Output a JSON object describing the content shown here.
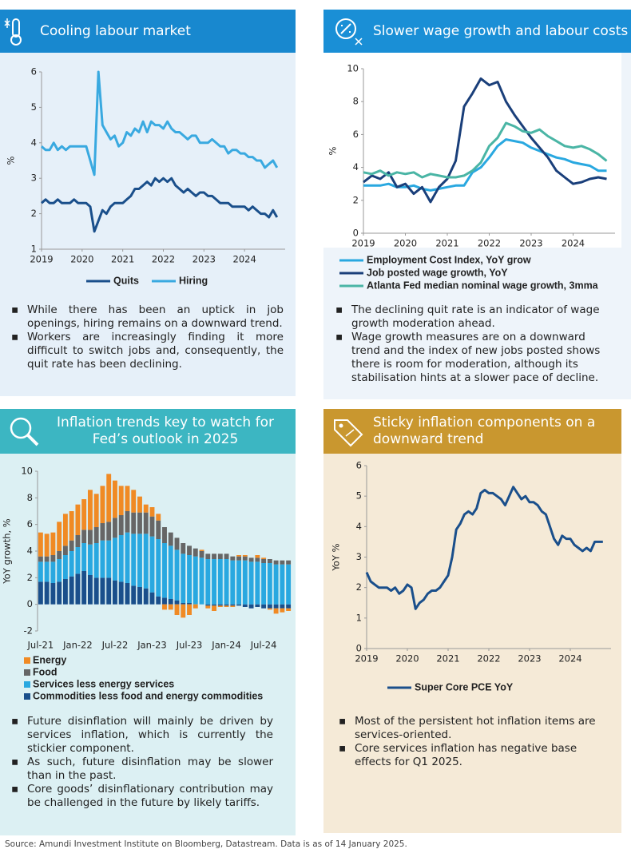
{
  "chart_data": [
    {
      "type": "line",
      "title": "Cooling labour market",
      "ylabel": "%",
      "xlim": [
        2019,
        2025
      ],
      "ylim": [
        1,
        6
      ],
      "xticks": [
        2019,
        2020,
        2021,
        2022,
        2023,
        2024
      ],
      "yticks": [
        1,
        2,
        3,
        4,
        5,
        6
      ],
      "grid": false,
      "legend": "bottom",
      "x": [
        2019.0,
        2019.1,
        2019.2,
        2019.3,
        2019.4,
        2019.5,
        2019.6,
        2019.7,
        2019.8,
        2019.9,
        2020.0,
        2020.1,
        2020.2,
        2020.3,
        2020.4,
        2020.5,
        2020.6,
        2020.7,
        2020.8,
        2020.9,
        2021.0,
        2021.1,
        2021.2,
        2021.3,
        2021.4,
        2021.5,
        2021.6,
        2021.7,
        2021.8,
        2021.9,
        2022.0,
        2022.1,
        2022.2,
        2022.3,
        2022.4,
        2022.5,
        2022.6,
        2022.7,
        2022.8,
        2022.9,
        2023.0,
        2023.1,
        2023.2,
        2023.3,
        2023.4,
        2023.5,
        2023.6,
        2023.7,
        2023.8,
        2023.9,
        2024.0,
        2024.1,
        2024.2,
        2024.3,
        2024.4,
        2024.5,
        2024.6,
        2024.7,
        2024.8
      ],
      "series": [
        {
          "name": "Quits",
          "color": "#1a4f8b",
          "values": [
            2.3,
            2.4,
            2.3,
            2.3,
            2.4,
            2.3,
            2.3,
            2.3,
            2.4,
            2.3,
            2.3,
            2.3,
            2.2,
            1.5,
            1.8,
            2.1,
            2.0,
            2.2,
            2.3,
            2.3,
            2.3,
            2.4,
            2.5,
            2.7,
            2.7,
            2.8,
            2.9,
            2.8,
            3.0,
            2.9,
            3.0,
            2.9,
            3.0,
            2.8,
            2.7,
            2.6,
            2.7,
            2.6,
            2.5,
            2.6,
            2.6,
            2.5,
            2.5,
            2.4,
            2.3,
            2.3,
            2.3,
            2.2,
            2.2,
            2.2,
            2.2,
            2.1,
            2.2,
            2.1,
            2.0,
            2.0,
            1.9,
            2.1,
            1.9
          ]
        },
        {
          "name": "Hiring",
          "color": "#39a9e0",
          "values": [
            3.9,
            3.8,
            3.8,
            4.0,
            3.8,
            3.9,
            3.8,
            3.9,
            3.9,
            3.9,
            3.9,
            3.9,
            3.5,
            3.1,
            6.0,
            4.5,
            4.3,
            4.1,
            4.2,
            3.9,
            4.0,
            4.3,
            4.2,
            4.4,
            4.3,
            4.6,
            4.3,
            4.6,
            4.5,
            4.5,
            4.4,
            4.6,
            4.4,
            4.3,
            4.3,
            4.2,
            4.1,
            4.2,
            4.2,
            4.0,
            4.0,
            4.0,
            4.1,
            4.0,
            3.9,
            3.9,
            3.7,
            3.8,
            3.8,
            3.7,
            3.7,
            3.6,
            3.6,
            3.5,
            3.5,
            3.3,
            3.4,
            3.5,
            3.3
          ]
        }
      ],
      "bullets": [
        "While there has been an uptick in job openings, hiring remains on a downward trend.",
        "Workers are increasingly finding it more difficult to switch jobs and, consequently, the quit rate has been declining."
      ]
    },
    {
      "type": "line",
      "title": "Slower wage growth and labour costs",
      "ylabel": "%",
      "xlim": [
        2019,
        2025
      ],
      "ylim": [
        0,
        10
      ],
      "xticks": [
        2019,
        2020,
        2021,
        2022,
        2023,
        2024
      ],
      "yticks": [
        0,
        2,
        4,
        6,
        8,
        10
      ],
      "grid": false,
      "legend": "bottom",
      "x": [
        2019.0,
        2019.2,
        2019.4,
        2019.6,
        2019.8,
        2020.0,
        2020.2,
        2020.4,
        2020.6,
        2020.8,
        2021.0,
        2021.2,
        2021.4,
        2021.6,
        2021.8,
        2022.0,
        2022.2,
        2022.4,
        2022.6,
        2022.8,
        2023.0,
        2023.2,
        2023.4,
        2023.6,
        2023.8,
        2024.0,
        2024.2,
        2024.4,
        2024.6,
        2024.8
      ],
      "series": [
        {
          "name": "Employment Cost Index, YoY grow",
          "color": "#29a8e0",
          "values": [
            2.9,
            2.9,
            2.9,
            3.0,
            2.8,
            2.8,
            2.9,
            2.7,
            2.6,
            2.7,
            2.8,
            2.9,
            2.9,
            3.7,
            4.0,
            4.6,
            5.3,
            5.7,
            5.6,
            5.5,
            5.2,
            5.0,
            4.8,
            4.6,
            4.5,
            4.3,
            4.2,
            4.1,
            3.8,
            3.8
          ]
        },
        {
          "name": "Job posted wage growth, YoY",
          "color": "#1a3f7a",
          "values": [
            3.1,
            3.5,
            3.3,
            3.7,
            2.8,
            3.0,
            2.4,
            2.8,
            1.9,
            2.8,
            3.3,
            4.4,
            7.7,
            8.5,
            9.4,
            9.0,
            9.2,
            8.0,
            7.2,
            6.5,
            5.8,
            5.2,
            4.6,
            3.8,
            3.4,
            3.0,
            3.1,
            3.3,
            3.4,
            3.3
          ]
        },
        {
          "name": "Atlanta Fed median nominal wage growth, 3mma",
          "color": "#4ab5a5",
          "values": [
            3.7,
            3.6,
            3.8,
            3.5,
            3.7,
            3.6,
            3.7,
            3.4,
            3.6,
            3.5,
            3.4,
            3.4,
            3.5,
            3.8,
            4.3,
            5.3,
            5.8,
            6.7,
            6.5,
            6.2,
            6.1,
            6.3,
            5.9,
            5.6,
            5.3,
            5.2,
            5.3,
            5.1,
            4.8,
            4.4
          ]
        }
      ],
      "bullets": [
        "The declining quit rate is an indicator of wage growth moderation ahead.",
        "Wage growth measures are on a downward trend and the index of new jobs posted shows there is room for moderation, although its stabilisation hints at a slower pace of decline."
      ]
    },
    {
      "type": "stacked-bar",
      "title": "Inflation trends key to watch for Fed’s outlook in 2025",
      "ylabel": "YoY growth, %",
      "ylim": [
        -2,
        10
      ],
      "yticks": [
        -2,
        0,
        2,
        4,
        6,
        8,
        10
      ],
      "grid": false,
      "legend": "bottom",
      "categories": [
        "Jul-21",
        null,
        null,
        null,
        null,
        null,
        "Jan-22",
        null,
        null,
        null,
        null,
        null,
        "Jul-22",
        null,
        null,
        null,
        null,
        null,
        "Jan-23",
        null,
        null,
        null,
        null,
        null,
        "Jul-23",
        null,
        null,
        null,
        null,
        null,
        "Jan-24",
        null,
        null,
        null,
        null,
        null,
        "Jul-24",
        null,
        null,
        null,
        null
      ],
      "series": [
        {
          "name": "Energy",
          "color": "#f08a24",
          "values": [
            1.8,
            1.7,
            1.7,
            2.2,
            2.4,
            2.2,
            2.3,
            2.3,
            3.0,
            2.5,
            2.8,
            3.6,
            2.8,
            2.2,
            1.9,
            1.7,
            1.2,
            0.6,
            0.7,
            0.5,
            -0.4,
            -0.4,
            -0.8,
            -1.0,
            -0.8,
            -0.3,
            0.1,
            -0.2,
            -0.4,
            -0.1,
            -0.1,
            -0.1,
            0.1,
            0.1,
            0.0,
            0.2,
            0.1,
            -0.1,
            -0.4,
            -0.3,
            -0.2
          ]
        },
        {
          "name": "Food",
          "color": "#666666",
          "values": [
            0.4,
            0.4,
            0.5,
            0.6,
            0.7,
            0.8,
            0.9,
            1.0,
            1.1,
            1.2,
            1.3,
            1.4,
            1.5,
            1.5,
            1.6,
            1.6,
            1.6,
            1.6,
            1.5,
            1.4,
            1.2,
            1.0,
            0.9,
            0.8,
            0.7,
            0.6,
            0.5,
            0.4,
            0.4,
            0.4,
            0.4,
            0.3,
            0.3,
            0.3,
            0.3,
            0.3,
            0.3,
            0.3,
            0.3,
            0.3,
            0.3
          ]
        },
        {
          "name": "Services less energy services",
          "color": "#29a8e0",
          "values": [
            1.5,
            1.5,
            1.6,
            1.7,
            1.8,
            1.9,
            2.0,
            2.1,
            2.3,
            2.6,
            2.8,
            2.8,
            3.2,
            3.5,
            3.8,
            3.9,
            4.0,
            4.1,
            4.2,
            4.3,
            4.1,
            4.0,
            3.8,
            3.7,
            3.6,
            3.6,
            3.5,
            3.4,
            3.4,
            3.4,
            3.4,
            3.3,
            3.3,
            3.3,
            3.2,
            3.2,
            3.1,
            3.1,
            3.0,
            3.0,
            3.0
          ]
        },
        {
          "name": "Commodities less food and energy commodities",
          "color": "#1a4f8b",
          "values": [
            1.7,
            1.7,
            1.6,
            1.7,
            1.9,
            2.1,
            2.3,
            2.5,
            2.2,
            2.0,
            2.0,
            2.0,
            1.8,
            1.7,
            1.6,
            1.4,
            1.3,
            1.2,
            0.9,
            0.6,
            0.5,
            0.4,
            0.3,
            0.1,
            0.1,
            0.0,
            0.0,
            -0.1,
            -0.1,
            -0.1,
            -0.1,
            -0.1,
            -0.1,
            -0.2,
            -0.3,
            -0.2,
            -0.3,
            -0.3,
            -0.3,
            -0.3,
            -0.3
          ]
        }
      ],
      "bullets": [
        "Future disinflation will mainly be driven by services inflation, which is currently the stickier component.",
        "As such, future disinflation may be slower than in the past.",
        "Core goods’ disinflationary contribution may be challenged in the future by likely tariffs."
      ]
    },
    {
      "type": "line",
      "title": "Sticky inflation components on a downward trend",
      "ylabel": "YoY %",
      "xlim": [
        2019,
        2025
      ],
      "ylim": [
        0,
        6
      ],
      "xticks": [
        2019,
        2020,
        2021,
        2022,
        2023,
        2024
      ],
      "yticks": [
        0,
        1,
        2,
        3,
        4,
        5,
        6
      ],
      "grid": false,
      "legend": "bottom",
      "x": [
        2019.0,
        2019.1,
        2019.2,
        2019.3,
        2019.4,
        2019.5,
        2019.6,
        2019.7,
        2019.8,
        2019.9,
        2020.0,
        2020.1,
        2020.2,
        2020.3,
        2020.4,
        2020.5,
        2020.6,
        2020.7,
        2020.8,
        2020.9,
        2021.0,
        2021.1,
        2021.2,
        2021.3,
        2021.4,
        2021.5,
        2021.6,
        2021.7,
        2021.8,
        2021.9,
        2022.0,
        2022.1,
        2022.2,
        2022.3,
        2022.4,
        2022.5,
        2022.6,
        2022.7,
        2022.8,
        2022.9,
        2023.0,
        2023.1,
        2023.2,
        2023.3,
        2023.4,
        2023.5,
        2023.6,
        2023.7,
        2023.8,
        2023.9,
        2024.0,
        2024.1,
        2024.2,
        2024.3,
        2024.4,
        2024.5,
        2024.6,
        2024.7,
        2024.8
      ],
      "series": [
        {
          "name": "Super Core PCE YoY",
          "color": "#1a4f8b",
          "values": [
            2.5,
            2.2,
            2.1,
            2.0,
            2.0,
            2.0,
            1.9,
            2.0,
            1.8,
            1.9,
            2.1,
            2.0,
            1.3,
            1.5,
            1.6,
            1.8,
            1.9,
            1.9,
            2.0,
            2.2,
            2.4,
            3.0,
            3.9,
            4.1,
            4.4,
            4.5,
            4.4,
            4.6,
            5.1,
            5.2,
            5.1,
            5.1,
            5.0,
            4.9,
            4.7,
            5.0,
            5.3,
            5.1,
            4.9,
            5.0,
            4.8,
            4.8,
            4.7,
            4.5,
            4.4,
            4.0,
            3.6,
            3.4,
            3.7,
            3.6,
            3.6,
            3.4,
            3.3,
            3.2,
            3.3,
            3.2,
            3.5,
            3.5,
            3.5
          ]
        }
      ],
      "bullets": [
        "Most of the persistent hot inflation items are services-oriented.",
        "Core services inflation has negative base effects for Q1 2025."
      ]
    }
  ],
  "source": "Source: Amundi Investment Institute on Bloomberg, Datastream. Data is as of 14 January 2025."
}
